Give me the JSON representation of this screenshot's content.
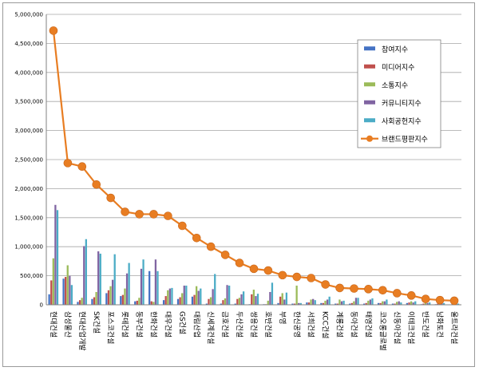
{
  "chart_data": {
    "type": "bar",
    "categories": [
      "현대건설",
      "삼성물산",
      "현대산업개발",
      "SK건설",
      "포스코건설",
      "롯데건설",
      "동부건설",
      "한화건설",
      "대우건설",
      "GS건설",
      "대림산업",
      "신세계건설",
      "금호건설",
      "두산건설",
      "쌍용건설",
      "호반건설",
      "부영",
      "한신공영",
      "서희건설",
      "KCC건설",
      "계룡건설",
      "동아건설",
      "태영건설",
      "코오롱글로벌",
      "신동아건설",
      "이테크건설",
      "반도건설",
      "남화토건",
      "울트라건설"
    ],
    "ylim": [
      0,
      5000000
    ],
    "yticks": [
      0,
      500000,
      1000000,
      1500000,
      2000000,
      2500000,
      3000000,
      3500000,
      4000000,
      4500000,
      5000000
    ],
    "ytick_labels": [
      "0",
      "500,000",
      "1,000,000",
      "1,500,000",
      "2,000,000",
      "2,500,000",
      "3,000,000",
      "3,500,000",
      "4,000,000",
      "4,500,000",
      "5,000,000"
    ],
    "grid": true,
    "legend_position": "right",
    "series": [
      {
        "name": "참여지수",
        "kind": "bar",
        "color": "#4472c4",
        "values": [
          180000,
          450000,
          50000,
          100000,
          200000,
          150000,
          60000,
          580000,
          80000,
          100000,
          140000,
          20000,
          20000,
          20000,
          10000,
          10000,
          30000,
          20000,
          40000,
          30000,
          20000,
          20000,
          20000,
          30000,
          20000,
          30000,
          10000,
          10000,
          5000
        ]
      },
      {
        "name": "미디어지수",
        "kind": "bar",
        "color": "#c0504d",
        "values": [
          420000,
          480000,
          80000,
          130000,
          250000,
          170000,
          70000,
          60000,
          150000,
          130000,
          170000,
          100000,
          80000,
          100000,
          180000,
          10000,
          140000,
          20000,
          40000,
          30000,
          20000,
          30000,
          30000,
          30000,
          20000,
          40000,
          20000,
          20000,
          10000
        ]
      },
      {
        "name": "소통지수",
        "kind": "bar",
        "color": "#9bbb59",
        "values": [
          800000,
          680000,
          120000,
          220000,
          320000,
          280000,
          120000,
          50000,
          250000,
          200000,
          320000,
          130000,
          110000,
          120000,
          260000,
          70000,
          200000,
          330000,
          90000,
          70000,
          90000,
          60000,
          70000,
          60000,
          50000,
          60000,
          30000,
          30000,
          20000
        ]
      },
      {
        "name": "커뮤니티지수",
        "kind": "bar",
        "color": "#8064a2",
        "values": [
          1720000,
          500000,
          1010000,
          920000,
          430000,
          540000,
          620000,
          780000,
          280000,
          330000,
          240000,
          270000,
          340000,
          180000,
          150000,
          220000,
          90000,
          30000,
          100000,
          90000,
          60000,
          120000,
          90000,
          60000,
          60000,
          40000,
          30000,
          30000,
          20000
        ]
      },
      {
        "name": "사회공헌지수",
        "kind": "bar",
        "color": "#4bacc6",
        "values": [
          1630000,
          340000,
          1130000,
          880000,
          870000,
          720000,
          780000,
          580000,
          290000,
          330000,
          280000,
          530000,
          330000,
          230000,
          190000,
          380000,
          210000,
          30000,
          80000,
          140000,
          70000,
          120000,
          110000,
          90000,
          40000,
          60000,
          40000,
          30000,
          20000
        ]
      },
      {
        "name": "브랜드평판지수",
        "kind": "line",
        "color": "#e87d22",
        "values": [
          4720000,
          2440000,
          2380000,
          2070000,
          1840000,
          1600000,
          1560000,
          1560000,
          1530000,
          1360000,
          1150000,
          1000000,
          860000,
          720000,
          620000,
          590000,
          510000,
          480000,
          460000,
          350000,
          290000,
          280000,
          270000,
          250000,
          200000,
          160000,
          100000,
          80000,
          70000
        ]
      }
    ]
  }
}
